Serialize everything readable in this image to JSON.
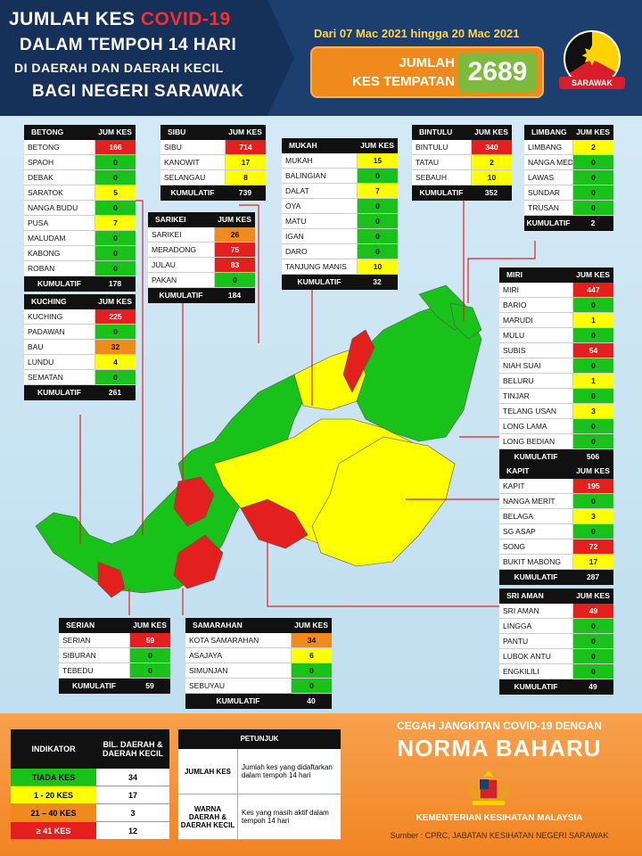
{
  "header": {
    "line1a": "JUMLAH KES ",
    "line1b": "COVID-19",
    "line2": "DALAM TEMPOH 14 HARI",
    "line3": "DI DAERAH DAN DAERAH KECIL",
    "line4": "BAGI NEGERI SARAWAK",
    "date_range": "Dari 07 Mac 2021 hingga 20 Mac 2021",
    "total_label1": "JUMLAH",
    "total_label2": "KES TEMPATAN",
    "total_value": "2689",
    "state_badge": "SARAWAK"
  },
  "colors": {
    "red": "#e3201e",
    "orange": "#f08a1c",
    "yellow": "#ffff00",
    "green": "#19c219"
  },
  "panels": {
    "betong": {
      "title": "BETONG",
      "col": "JUM KES",
      "total_label": "KUMULATIF",
      "total": "178",
      "rows": [
        [
          "BETONG",
          "166",
          "red"
        ],
        [
          "SPAOH",
          "0",
          "green"
        ],
        [
          "DEBAK",
          "0",
          "green"
        ],
        [
          "SARATOK",
          "5",
          "yellow"
        ],
        [
          "NANGA BUDU",
          "0",
          "green"
        ],
        [
          "PUSA",
          "7",
          "yellow"
        ],
        [
          "MALUDAM",
          "0",
          "green"
        ],
        [
          "KABONG",
          "0",
          "green"
        ],
        [
          "ROBAN",
          "0",
          "green"
        ]
      ]
    },
    "sibu": {
      "title": "SIBU",
      "col": "JUM KES",
      "total_label": "KUMULATIF",
      "total": "739",
      "rows": [
        [
          "SIBU",
          "714",
          "red"
        ],
        [
          "KANOWIT",
          "17",
          "yellow"
        ],
        [
          "SELANGAU",
          "8",
          "yellow"
        ]
      ]
    },
    "sarikei": {
      "title": "SARIKEI",
      "col": "JUM KES",
      "total_label": "KUMULATIF",
      "total": "184",
      "rows": [
        [
          "SARIKEI",
          "26",
          "orange"
        ],
        [
          "MERADONG",
          "75",
          "red"
        ],
        [
          "JULAU",
          "83",
          "red"
        ],
        [
          "PAKAN",
          "0",
          "green"
        ]
      ]
    },
    "mukah": {
      "title": "MUKAH",
      "col": "JUM KES",
      "total_label": "KUMULATIF",
      "total": "32",
      "rows": [
        [
          "MUKAH",
          "15",
          "yellow"
        ],
        [
          "BALINGIAN",
          "0",
          "green"
        ],
        [
          "DALAT",
          "7",
          "yellow"
        ],
        [
          "OYA",
          "0",
          "green"
        ],
        [
          "MATU",
          "0",
          "green"
        ],
        [
          "IGAN",
          "0",
          "green"
        ],
        [
          "DARO",
          "0",
          "green"
        ],
        [
          "TANJUNG MANIS",
          "10",
          "yellow"
        ]
      ]
    },
    "bintulu": {
      "title": "BINTULU",
      "col": "JUM KES",
      "total_label": "KUMULATIF",
      "total": "352",
      "rows": [
        [
          "BINTULU",
          "340",
          "red"
        ],
        [
          "TATAU",
          "2",
          "yellow"
        ],
        [
          "SEBAUH",
          "10",
          "yellow"
        ]
      ]
    },
    "limbang": {
      "title": "LIMBANG",
      "col": "JUM KES",
      "total_label": "KUMULATIF",
      "total": "2",
      "rows": [
        [
          "LIMBANG",
          "2",
          "yellow"
        ],
        [
          "NANGA MEDAMIT",
          "0",
          "green"
        ],
        [
          "LAWAS",
          "0",
          "green"
        ],
        [
          "SUNDAR",
          "0",
          "green"
        ],
        [
          "TRUSAN",
          "0",
          "green"
        ]
      ]
    },
    "kuching": {
      "title": "KUCHING",
      "col": "JUM KES",
      "total_label": "KUMULATIF",
      "total": "261",
      "rows": [
        [
          "KUCHING",
          "225",
          "red"
        ],
        [
          "PADAWAN",
          "0",
          "green"
        ],
        [
          "BAU",
          "32",
          "orange"
        ],
        [
          "LUNDU",
          "4",
          "yellow"
        ],
        [
          "SEMATAN",
          "0",
          "green"
        ]
      ]
    },
    "miri": {
      "title": "MIRI",
      "col": "JUM KES",
      "total_label": "KUMULATIF",
      "total": "506",
      "rows": [
        [
          "MIRI",
          "447",
          "red"
        ],
        [
          "BARIO",
          "0",
          "green"
        ],
        [
          "MARUDI",
          "1",
          "yellow"
        ],
        [
          "MULU",
          "0",
          "green"
        ],
        [
          "SUBIS",
          "54",
          "red"
        ],
        [
          "NIAH SUAI",
          "0",
          "green"
        ],
        [
          "BELURU",
          "1",
          "yellow"
        ],
        [
          "TINJAR",
          "0",
          "green"
        ],
        [
          "TELANG USAN",
          "3",
          "yellow"
        ],
        [
          "LONG LAMA",
          "0",
          "green"
        ],
        [
          "LONG BEDIAN",
          "0",
          "green"
        ]
      ]
    },
    "kapit": {
      "title": "KAPIT",
      "col": "JUM KES",
      "total_label": "KUMULATIF",
      "total": "287",
      "rows": [
        [
          "KAPIT",
          "195",
          "red"
        ],
        [
          "NANGA MERIT",
          "0",
          "green"
        ],
        [
          "BELAGA",
          "3",
          "yellow"
        ],
        [
          "SG ASAP",
          "0",
          "green"
        ],
        [
          "SONG",
          "72",
          "red"
        ],
        [
          "BUKIT MABONG",
          "17",
          "yellow"
        ]
      ]
    },
    "sri_aman": {
      "title": "SRI AMAN",
      "col": "JUM KES",
      "total_label": "KUMULATIF",
      "total": "49",
      "rows": [
        [
          "SRI AMAN",
          "49",
          "red"
        ],
        [
          "LINGGA",
          "0",
          "green"
        ],
        [
          "PANTU",
          "0",
          "green"
        ],
        [
          "LUBOK ANTU",
          "0",
          "green"
        ],
        [
          "ENGKILILI",
          "0",
          "green"
        ]
      ]
    },
    "serian": {
      "title": "SERIAN",
      "col": "JUM KES",
      "total_label": "KUMULATIF",
      "total": "59",
      "rows": [
        [
          "SERIAN",
          "59",
          "red"
        ],
        [
          "SIBURAN",
          "0",
          "green"
        ],
        [
          "TEBEDU",
          "0",
          "green"
        ]
      ]
    },
    "samarahan": {
      "title": "SAMARAHAN",
      "col": "JUM KES",
      "total_label": "KUMULATIF",
      "total": "40",
      "rows": [
        [
          "KOTA SAMARAHAN",
          "34",
          "orange"
        ],
        [
          "ASAJAYA",
          "6",
          "yellow"
        ],
        [
          "SIMUNJAN",
          "0",
          "green"
        ],
        [
          "SEBUYAU",
          "0",
          "green"
        ]
      ]
    }
  },
  "indicator": {
    "h1": "INDIKATOR",
    "h2": "BIL. DAERAH & DAERAH KECIL",
    "rows": [
      [
        "TIADA KES",
        "34",
        "green"
      ],
      [
        "1 - 20 KES",
        "17",
        "yellow"
      ],
      [
        "21 – 40 KES",
        "3",
        "orange"
      ],
      [
        "≥ 41 KES",
        "12",
        "red"
      ]
    ]
  },
  "petunjuk": {
    "title": "PETUNJUK",
    "rows": [
      [
        "JUMLAH KES",
        "Jumlah kes yang didaftarkan dalam tempoh 14 hari"
      ],
      [
        "WARNA DAERAH & DAERAH KECIL",
        "Kes yang masih aktif dalam tempoh 14 hari"
      ]
    ]
  },
  "footer": {
    "cegah": "CEGAH JANGKITAN COVID-19 DENGAN",
    "norma": "NORMA BAHARU",
    "kkm": "KEMENTERIAN KESIHATAN MALAYSIA",
    "sumber": "Sumber : CPRC, JABATAN KESIHATAN NEGERI SARAWAK"
  }
}
